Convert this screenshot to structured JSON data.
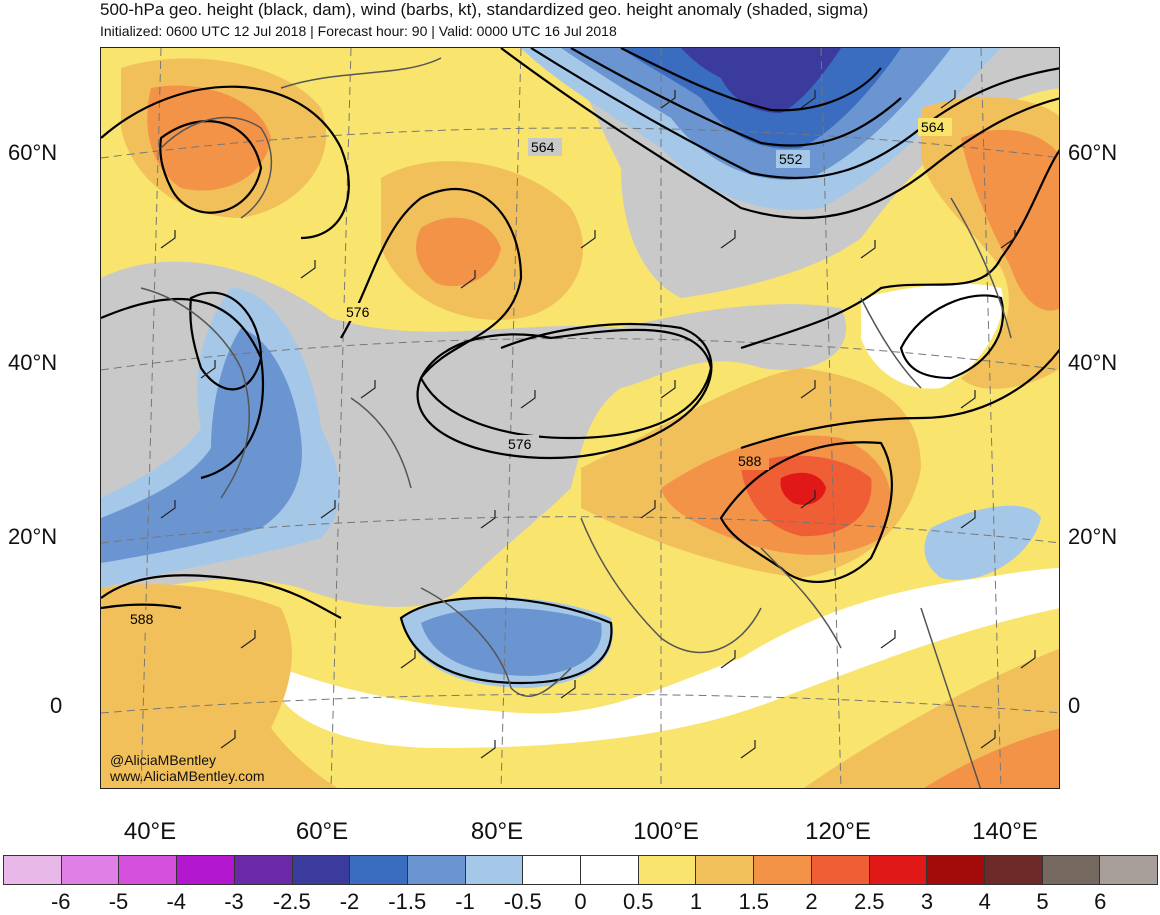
{
  "header": {
    "title": "500-hPa geo. height (black, dam), wind (barbs, kt), standardized geo. height anomaly (shaded, sigma)",
    "subtitle": "Initialized: 0600 UTC 12 Jul 2018 | Forecast hour: 90 | Valid: 0000 UTC 16 Jul 2018"
  },
  "map": {
    "lat_labels": [
      "60°N",
      "40°N",
      "20°N",
      "0"
    ],
    "lon_labels": [
      "40°E",
      "60°E",
      "80°E",
      "100°E",
      "120°E",
      "140°E"
    ],
    "contour_labels": [
      "564",
      "552",
      "564",
      "576",
      "576",
      "588",
      "588"
    ],
    "credit_handle": "@AliciaMBentley",
    "credit_site": "www.AliciaMBentley.com"
  },
  "colorbar": {
    "ticks": [
      "-6",
      "-5",
      "-4",
      "-3",
      "-2.5",
      "-2",
      "-1.5",
      "-1",
      "-0.5",
      "0",
      "0.5",
      "1",
      "1.5",
      "2",
      "2.5",
      "3",
      "4",
      "5",
      "6"
    ],
    "colors": [
      "#e8b8e8",
      "#e07fe6",
      "#d44fdc",
      "#b316cf",
      "#6a2aa8",
      "#3b3b9e",
      "#3a6cbf",
      "#6a95d1",
      "#a6c8e8",
      "#ffffff",
      "#ffffff",
      "#f9e46e",
      "#f2c05a",
      "#f29347",
      "#ef5e35",
      "#e01818",
      "#a30a0a",
      "#6e2a28",
      "#76695f",
      "#a89e9a"
    ]
  }
}
